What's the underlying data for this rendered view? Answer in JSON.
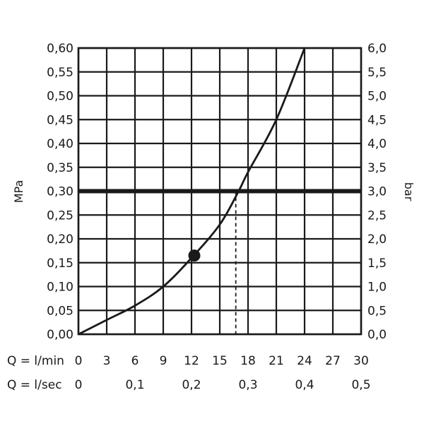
{
  "chart_data": {
    "type": "line",
    "left_axis": {
      "label": "MPa",
      "ticks": [
        "0,00",
        "0,05",
        "0,10",
        "0,15",
        "0,20",
        "0,25",
        "0,30",
        "0,35",
        "0,40",
        "0,45",
        "0,50",
        "0,55",
        "0,60"
      ],
      "ylim": [
        0,
        0.6
      ]
    },
    "right_axis": {
      "label": "bar",
      "ticks": [
        "0,0",
        "0,5",
        "1,0",
        "1,5",
        "2,0",
        "2,5",
        "3,0",
        "3,5",
        "4,0",
        "4,5",
        "5,0",
        "5,5",
        "6,0"
      ],
      "ylim": [
        0,
        6.0
      ]
    },
    "x_rows": [
      {
        "label": "Q = l/min",
        "ticks": [
          {
            "x": 0,
            "text": "0"
          },
          {
            "x": 3,
            "text": "3"
          },
          {
            "x": 6,
            "text": "6"
          },
          {
            "x": 9,
            "text": "9"
          },
          {
            "x": 12,
            "text": "12"
          },
          {
            "x": 15,
            "text": "15"
          },
          {
            "x": 18,
            "text": "18"
          },
          {
            "x": 21,
            "text": "21"
          },
          {
            "x": 24,
            "text": "24"
          },
          {
            "x": 27,
            "text": "27"
          },
          {
            "x": 30,
            "text": "30"
          }
        ]
      },
      {
        "label": "Q = l/sec",
        "ticks": [
          {
            "x": 0,
            "text": "0"
          },
          {
            "x": 6,
            "text": "0,1"
          },
          {
            "x": 12,
            "text": "0,2"
          },
          {
            "x": 18,
            "text": "0,3"
          },
          {
            "x": 24,
            "text": "0,4"
          },
          {
            "x": 30,
            "text": "0,5"
          }
        ]
      }
    ],
    "xlim": [
      0,
      30
    ],
    "grid": true,
    "series": [
      {
        "x": [
          0,
          3,
          6,
          9,
          12,
          15,
          17,
          18,
          21,
          24
        ],
        "y": [
          0,
          0.03,
          0.06,
          0.1,
          0.16,
          0.23,
          0.3,
          0.34,
          0.45,
          0.6
        ]
      }
    ],
    "marker": {
      "x": 12.3,
      "y": 0.165
    },
    "reference_line": {
      "y": 0.3
    },
    "reference_drop": {
      "x": 16.7,
      "y": 0.3
    },
    "colors": {
      "line": "#1a1a1a",
      "grid": "#1a1a1a",
      "reference": "#1a1a1a"
    }
  }
}
